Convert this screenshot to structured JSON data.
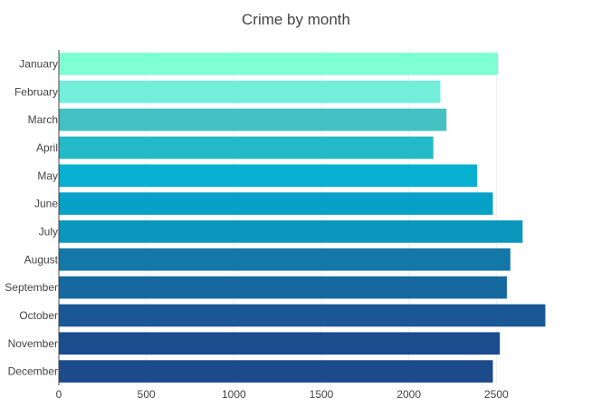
{
  "chart_data": {
    "type": "bar",
    "orientation": "horizontal",
    "title": "Crime by month",
    "xlabel": "",
    "ylabel": "",
    "categories": [
      "January",
      "February",
      "March",
      "April",
      "May",
      "June",
      "July",
      "August",
      "September",
      "October",
      "November",
      "December"
    ],
    "values": [
      2510,
      2180,
      2215,
      2140,
      2390,
      2480,
      2650,
      2580,
      2560,
      2780,
      2520,
      2480
    ],
    "colors": [
      "#7fffd4",
      "#72eedb",
      "#43c1c3",
      "#24b9c7",
      "#05b0d0",
      "#06a1c6",
      "#0b96bd",
      "#1378a8",
      "#1569a0",
      "#195795",
      "#1a4c8e",
      "#1b4b8a"
    ],
    "xlim": [
      0,
      2850
    ],
    "xticks": [
      0,
      500,
      1000,
      1500,
      2000,
      2500
    ],
    "grid": true
  }
}
